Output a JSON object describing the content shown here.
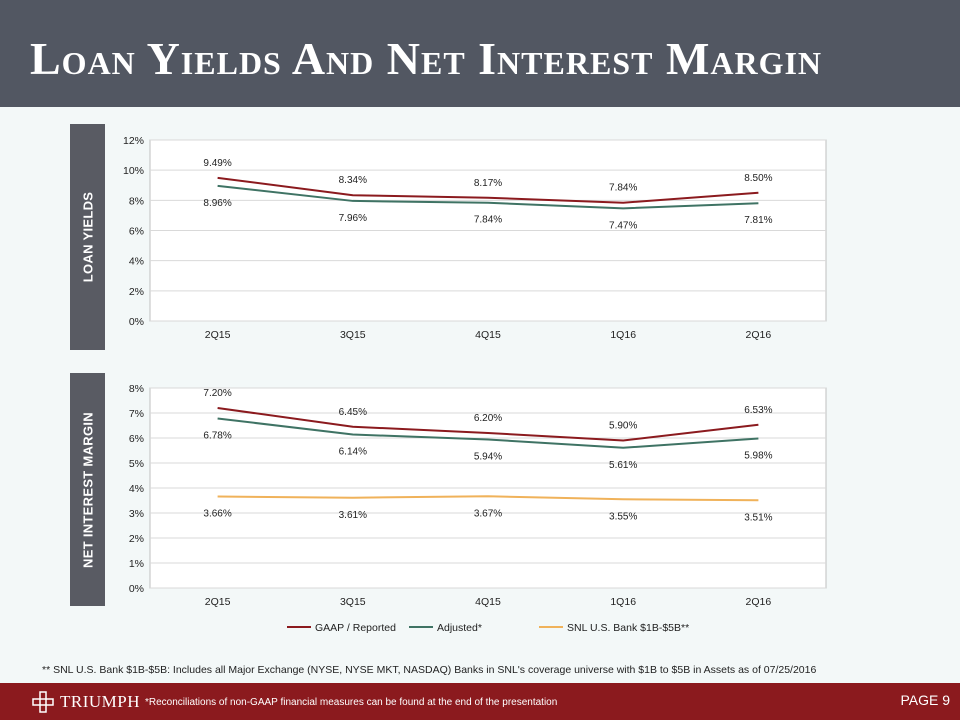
{
  "header": {
    "title": "Loan Yields And Net Interest Margin"
  },
  "side_tabs": {
    "loan_yields": "LOAN YIELDS",
    "net_interest_margin": "NET INTEREST MARGIN"
  },
  "colors": {
    "gaap": "#8b1a1e",
    "adjusted": "#3f7364",
    "snl": "#f0b25a",
    "header": "#525762",
    "footer": "#8b1a1e",
    "background": "#f3f8f8"
  },
  "chart_data": [
    {
      "type": "line",
      "categories": [
        "2Q15",
        "3Q15",
        "4Q15",
        "1Q16",
        "2Q16"
      ],
      "ylim": [
        0,
        12
      ],
      "yticks": [
        "0%",
        "2%",
        "4%",
        "6%",
        "8%",
        "10%",
        "12%"
      ],
      "grid": true,
      "series": [
        {
          "name": "GAAP / Reported",
          "values": [
            9.49,
            8.34,
            8.17,
            7.84,
            8.5
          ],
          "labels": [
            "9.49%",
            "8.34%",
            "8.17%",
            "7.84%",
            "8.50%"
          ],
          "color": "#8b1a1e"
        },
        {
          "name": "Adjusted*",
          "values": [
            8.96,
            7.96,
            7.84,
            7.47,
            7.81
          ],
          "labels": [
            "8.96%",
            "7.96%",
            "7.84%",
            "7.47%",
            "7.81%"
          ],
          "color": "#3f7364"
        }
      ]
    },
    {
      "type": "line",
      "categories": [
        "2Q15",
        "3Q15",
        "4Q15",
        "1Q16",
        "2Q16"
      ],
      "ylim": [
        0,
        8
      ],
      "yticks": [
        "0%",
        "1%",
        "2%",
        "3%",
        "4%",
        "5%",
        "6%",
        "7%",
        "8%"
      ],
      "grid": true,
      "legend_position": "bottom",
      "series": [
        {
          "name": "GAAP / Reported",
          "values": [
            7.2,
            6.45,
            6.2,
            5.9,
            6.53
          ],
          "labels": [
            "7.20%",
            "6.45%",
            "6.20%",
            "5.90%",
            "6.53%"
          ],
          "color": "#8b1a1e"
        },
        {
          "name": "Adjusted*",
          "values": [
            6.78,
            6.14,
            5.94,
            5.61,
            5.98
          ],
          "labels": [
            "6.78%",
            "6.14%",
            "5.94%",
            "5.61%",
            "5.98%"
          ],
          "color": "#3f7364"
        },
        {
          "name": "SNL U.S. Bank $1B-$5B**",
          "values": [
            3.66,
            3.61,
            3.67,
            3.55,
            3.51
          ],
          "labels": [
            "3.66%",
            "3.61%",
            "3.67%",
            "3.55%",
            "3.51%"
          ],
          "color": "#f0b25a"
        }
      ]
    }
  ],
  "footnote": "**  SNL U.S. Bank $1B-$5B: Includes all Major Exchange (NYSE, NYSE MKT, NASDAQ) Banks in SNL's coverage universe with $1B to $5B in Assets as of 07/25/2016",
  "footer": {
    "logo_text": "TRIUMPH",
    "note": "*Reconciliations of non-GAAP financial measures can be found at the end of the presentation",
    "page": "PAGE 9"
  }
}
